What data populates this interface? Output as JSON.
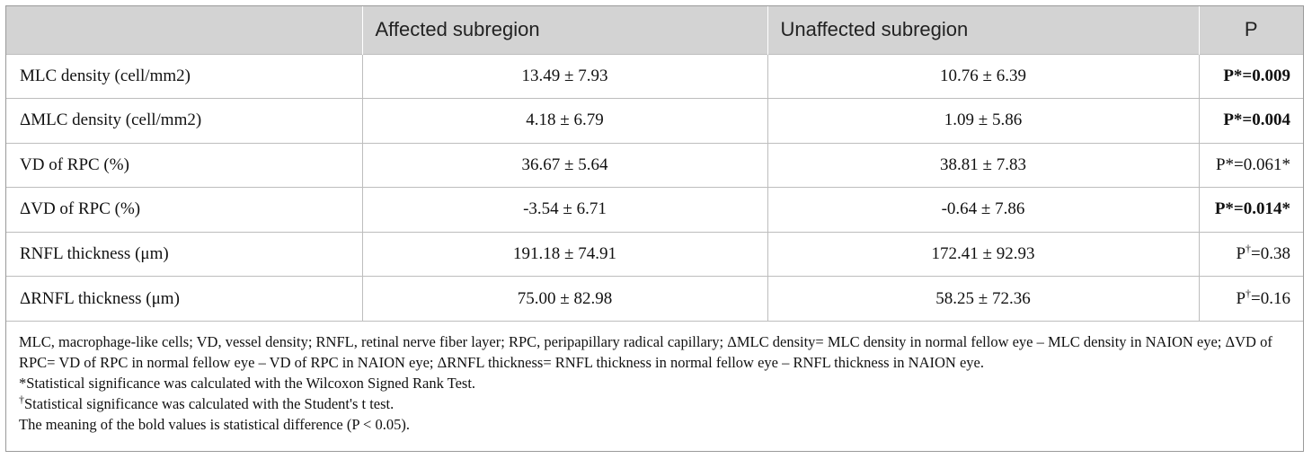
{
  "table": {
    "headers": [
      "",
      "Affected subregion",
      "Unaffected subregion",
      "P"
    ],
    "rows": [
      {
        "label": "MLC density (cell/mm2)",
        "affected": "13.49 ± 7.93",
        "unaffected": "10.76 ± 6.39",
        "p_prefix": "P*=",
        "p_sup": "",
        "p_value": "0.009",
        "bold": true
      },
      {
        "label": "ΔMLC density (cell/mm2)",
        "affected": "4.18 ± 6.79",
        "unaffected": "1.09 ± 5.86",
        "p_prefix": "P*=",
        "p_sup": "",
        "p_value": "0.004",
        "bold": true
      },
      {
        "label": "VD of RPC (%)",
        "affected": "36.67 ± 5.64",
        "unaffected": "38.81 ± 7.83",
        "p_prefix": "P*=",
        "p_sup": "",
        "p_value": "0.061*",
        "bold": false
      },
      {
        "label": "ΔVD of RPC (%)",
        "affected": "-3.54 ± 6.71",
        "unaffected": "-0.64 ± 7.86",
        "p_prefix": "P*=",
        "p_sup": "",
        "p_value": "0.014*",
        "bold": true
      },
      {
        "label": "RNFL thickness (μm)",
        "affected": "191.18 ± 74.91",
        "unaffected": "172.41 ± 92.93",
        "p_prefix": "P",
        "p_sup": "†",
        "p_value": "=0.38",
        "bold": false
      },
      {
        "label": "ΔRNFL thickness (μm)",
        "affected": "75.00 ± 82.98",
        "unaffected": "58.25 ± 72.36",
        "p_prefix": "P",
        "p_sup": "†",
        "p_value": "=0.16",
        "bold": false
      }
    ]
  },
  "notes": {
    "abbreviations": "MLC, macrophage-like cells; VD, vessel density; RNFL, retinal nerve fiber layer; RPC, peripapillary radical capillary; ΔMLC density= MLC density in normal fellow eye – MLC density in NAION eye; ΔVD of RPC= VD of RPC in normal fellow eye – VD of RPC in NAION eye; ΔRNFL thickness= RNFL thickness in normal fellow eye – RNFL thickness in NAION eye.",
    "wilcoxon": "*Statistical significance was calculated with the Wilcoxon Signed Rank Test.",
    "student_mark": "†",
    "student": "Statistical significance was calculated with the Student's t test.",
    "bold_meaning": "The meaning of the bold values is statistical difference (P < 0.05)."
  }
}
